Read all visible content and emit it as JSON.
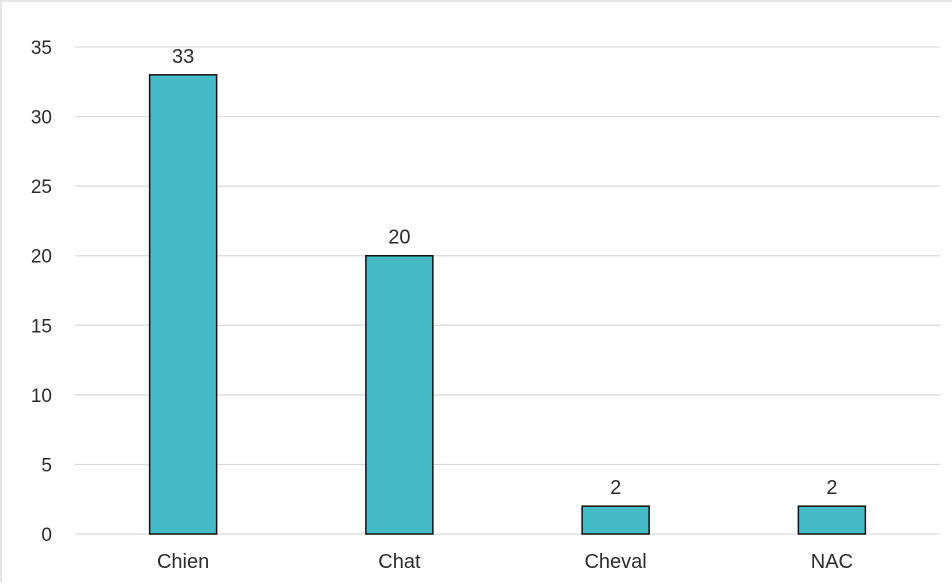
{
  "chart_data": {
    "type": "bar",
    "title": "",
    "xlabel": "",
    "ylabel": "",
    "categories": [
      "Chien",
      "Chat",
      "Cheval",
      "NAC"
    ],
    "values": [
      33,
      20,
      2,
      2
    ],
    "data_labels": [
      "33",
      "20",
      "2",
      "2"
    ],
    "ylim": [
      0,
      35
    ],
    "yticks": [
      0,
      5,
      10,
      15,
      20,
      25,
      30,
      35
    ],
    "ytick_labels": [
      "0",
      "5",
      "10",
      "15",
      "20",
      "25",
      "30",
      "35"
    ],
    "grid": true,
    "legend": "none",
    "colors": {
      "bar_fill": "#45bcc5",
      "bar_stroke": "#111111",
      "grid": "#d9d9d9"
    }
  }
}
